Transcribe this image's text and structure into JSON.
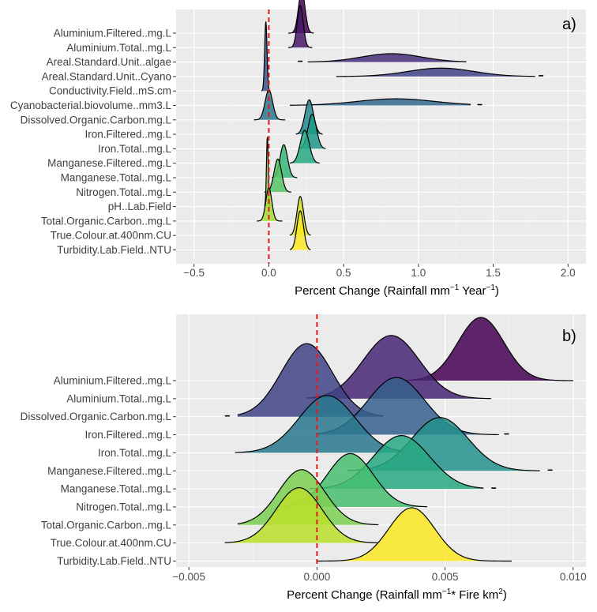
{
  "chart_data": [
    {
      "type": "ridgeline",
      "panel_label": "a)",
      "xlabel": {
        "pre": "Percent Change (Rainfall mm",
        "sup1": "−1",
        "mid": " Year",
        "sup2": "−1",
        "post": ")"
      },
      "xlim": [
        -0.62,
        2.12
      ],
      "xticks": [
        -0.5,
        0.0,
        0.5,
        1.0,
        1.5,
        2.0
      ],
      "xtick_labels": [
        "−0.5",
        "0.0",
        "0.5",
        "1.0",
        "1.5",
        "2.0"
      ],
      "reference_line": 0,
      "colormap": "viridis",
      "series": [
        {
          "name": "Aluminium.Filtered..mg.L",
          "peak": 0.22,
          "sd": 0.022,
          "left_tail": 0.13,
          "right_tail": 0.3,
          "height": 1.4
        },
        {
          "name": "Aluminium.Total..mg.L",
          "peak": 0.21,
          "sd": 0.02,
          "left_tail": 0.13,
          "right_tail": 0.29,
          "height": 1.4
        },
        {
          "name": "Areal.Standard.Unit..algae",
          "peak": 0.82,
          "sd": 0.2,
          "left_tail": 0.26,
          "right_tail": 1.32,
          "height": 0.28,
          "outliers": [
            0.21
          ]
        },
        {
          "name": "Areal.Standard.Unit..Cyano",
          "peak": 1.15,
          "sd": 0.22,
          "left_tail": 0.45,
          "right_tail": 1.78,
          "height": 0.28,
          "outliers": [
            1.82
          ]
        },
        {
          "name": "Conductivity.Field..mS.cm",
          "peak": -0.02,
          "sd": 0.008,
          "left_tail": -0.05,
          "right_tail": 0.01,
          "height": 2.3
        },
        {
          "name": "Cyanobacterial.biovolume..mm3.L",
          "peak": 0.85,
          "sd": 0.26,
          "left_tail": 0.14,
          "right_tail": 1.35,
          "height": 0.22,
          "outliers": [
            1.41
          ]
        },
        {
          "name": "Dissolved.Organic.Carbon.mg.L",
          "peak": 0.0,
          "sd": 0.025,
          "left_tail": -0.1,
          "right_tail": 0.11,
          "height": 1.0
        },
        {
          "name": "Iron.Filtered..mg.L",
          "peak": 0.27,
          "sd": 0.028,
          "left_tail": 0.18,
          "right_tail": 0.36,
          "height": 1.15
        },
        {
          "name": "Iron.Total..mg.L",
          "peak": 0.29,
          "sd": 0.028,
          "left_tail": 0.2,
          "right_tail": 0.38,
          "height": 1.15
        },
        {
          "name": "Manganese.Filtered..mg.L",
          "peak": 0.24,
          "sd": 0.03,
          "left_tail": 0.14,
          "right_tail": 0.34,
          "height": 1.1
        },
        {
          "name": "Manganese.Total..mg.L",
          "peak": 0.1,
          "sd": 0.025,
          "left_tail": 0.02,
          "right_tail": 0.19,
          "height": 1.1
        },
        {
          "name": "Nitrogen.Total..mg.L",
          "peak": 0.06,
          "sd": 0.025,
          "left_tail": -0.03,
          "right_tail": 0.15,
          "height": 1.1
        },
        {
          "name": "pH..Lab.Field",
          "peak": -0.01,
          "sd": 0.006,
          "left_tail": -0.03,
          "right_tail": 0.01,
          "height": 2.3
        },
        {
          "name": "Total.Organic.Carbon..mg.L",
          "peak": 0.0,
          "sd": 0.02,
          "left_tail": -0.08,
          "right_tail": 0.09,
          "height": 1.1
        },
        {
          "name": "True.Colour.at.400nm.CU",
          "peak": 0.21,
          "sd": 0.022,
          "left_tail": 0.14,
          "right_tail": 0.28,
          "height": 1.3
        },
        {
          "name": "Turbidity.Lab.Field..NTU",
          "peak": 0.21,
          "sd": 0.022,
          "left_tail": 0.14,
          "right_tail": 0.28,
          "height": 1.3
        }
      ]
    },
    {
      "type": "ridgeline",
      "panel_label": "b)",
      "xlabel": {
        "pre": "Percent Change (Rainfall mm",
        "sup1": "−1",
        "mid": "* Fire km",
        "sup2": "2",
        "post": ")"
      },
      "xlim": [
        -0.0055,
        0.0105
      ],
      "xticks": [
        -0.005,
        0.0,
        0.005,
        0.01
      ],
      "xtick_labels": [
        "−0.005",
        "0.000",
        "0.005",
        "0.010"
      ],
      "reference_line": 0,
      "colormap": "viridis",
      "series": [
        {
          "name": "Aluminium.Filtered..mg.L",
          "peak": 0.0064,
          "sd": 0.0009,
          "left_tail": 0.0033,
          "right_tail": 0.01,
          "height": 3.2
        },
        {
          "name": "Aluminium.Total..mg.L",
          "peak": 0.0029,
          "sd": 0.0011,
          "left_tail": -0.0004,
          "right_tail": 0.0068,
          "height": 3.2
        },
        {
          "name": "Dissolved.Organic.Carbon.mg.L",
          "peak": -0.0004,
          "sd": 0.001,
          "left_tail": -0.0031,
          "right_tail": 0.0026,
          "height": 3.7,
          "outliers": [
            -0.0035
          ]
        },
        {
          "name": "Iron.Filtered..mg.L",
          "peak": 0.0031,
          "sd": 0.0011,
          "left_tail": 0.0,
          "right_tail": 0.0071,
          "height": 2.9,
          "outliers": [
            0.0074
          ]
        },
        {
          "name": "Iron.Total..mg.L",
          "peak": 0.0004,
          "sd": 0.0011,
          "left_tail": -0.0032,
          "right_tail": 0.0036,
          "height": 2.9
        },
        {
          "name": "Manganese.Filtered..mg.L",
          "peak": 0.0048,
          "sd": 0.0011,
          "left_tail": 0.0012,
          "right_tail": 0.0087,
          "height": 2.7,
          "outliers": [
            0.0091
          ]
        },
        {
          "name": "Manganese.Total..mg.L",
          "peak": 0.0033,
          "sd": 0.0011,
          "left_tail": -0.0003,
          "right_tail": 0.0065,
          "height": 2.7,
          "outliers": [
            0.0069
          ]
        },
        {
          "name": "Nitrogen.Total..mg.L",
          "peak": 0.0013,
          "sd": 0.0009,
          "left_tail": -0.0015,
          "right_tail": 0.0043,
          "height": 2.7
        },
        {
          "name": "Total.Organic.Carbon..mg.L",
          "peak": -0.0006,
          "sd": 0.0009,
          "left_tail": -0.0031,
          "right_tail": 0.0024,
          "height": 2.8
        },
        {
          "name": "True.Colour.at.400nm.CU",
          "peak": -0.0007,
          "sd": 0.0009,
          "left_tail": -0.0036,
          "right_tail": 0.0024,
          "height": 2.8
        },
        {
          "name": "Turbidity.Lab.Field..NTU",
          "peak": 0.0037,
          "sd": 0.0009,
          "left_tail": 0.0,
          "right_tail": 0.0076,
          "height": 2.7
        }
      ]
    }
  ]
}
